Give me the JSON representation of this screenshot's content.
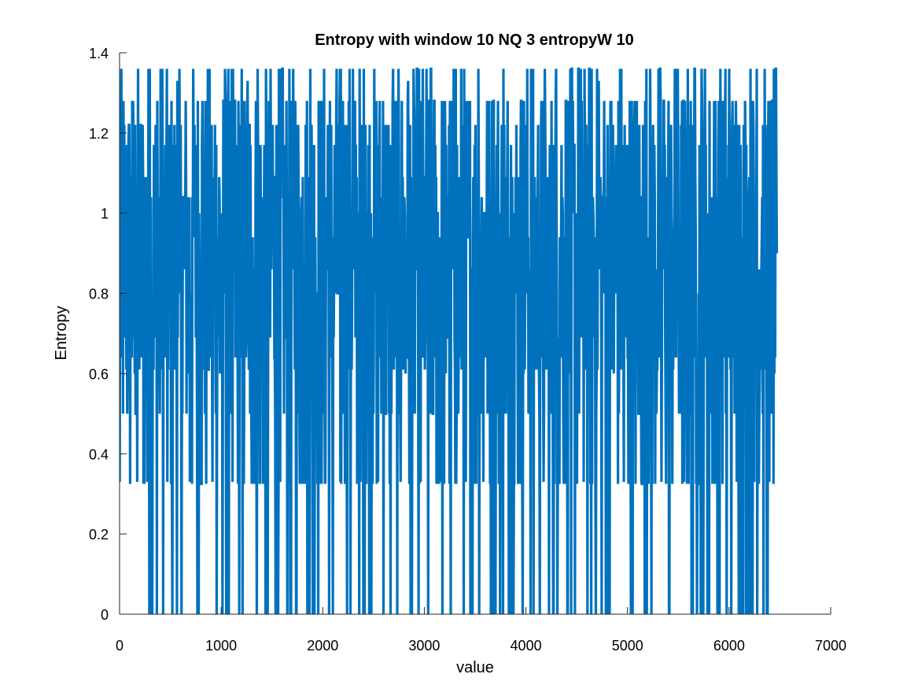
{
  "chart_data": {
    "type": "line",
    "title": "Entropy with window 10  NQ 3  entropyW 10",
    "xlabel": "value",
    "ylabel": "Entropy",
    "xlim": [
      0,
      7000
    ],
    "ylim": [
      0,
      1.4
    ],
    "x_ticks": [
      "0",
      "1000",
      "2000",
      "3000",
      "4000",
      "5000",
      "6000",
      "7000"
    ],
    "y_ticks": [
      "0",
      "0.2",
      "0.4",
      "0.6",
      "0.8",
      "1",
      "1.2",
      "1.4"
    ],
    "grid": false,
    "legend": "none",
    "series": [
      {
        "color": "#0072BD",
        "x_range": [
          1,
          6470
        ],
        "levels": [
          0,
          0.325,
          0.5,
          0.61,
          0.64,
          0.69,
          0.8,
          0.86,
          0.94,
          1.0,
          1.04,
          1.09,
          1.17,
          1.22,
          1.28,
          1.36
        ],
        "values": [
          0.33,
          1.06,
          0.69,
          0.5,
          0.94,
          1.28,
          0.6,
          0.33,
          1.09,
          0.69,
          0.86,
          0.33,
          1.36,
          0.0,
          0.69,
          1.28,
          0.5,
          1.36,
          0.64,
          0.33,
          1.09,
          0.0,
          0.69,
          1.33,
          0.8,
          0.5,
          1.0,
          0.6,
          0.33,
          1.04,
          0.94,
          0.0,
          0.69,
          1.28,
          0.5,
          1.09,
          0.69,
          0.33,
          1.22,
          0.94,
          0.6,
          0.0,
          1.36,
          0.5,
          0.86,
          0.33,
          1.28,
          0.69,
          1.06,
          0.0,
          0.64,
          1.33,
          0.5,
          0.94,
          0.6,
          1.36,
          0.33,
          0.8,
          1.09,
          0.0,
          0.69,
          1.22,
          0.5,
          1.0,
          0.33,
          1.36,
          0.69,
          0.94,
          0.0,
          0.86,
          1.28,
          0.5,
          0.69,
          1.09,
          0.33,
          0.6,
          1.36,
          0.0,
          0.94,
          0.69,
          1.06,
          0.5,
          0.33,
          1.22,
          0.64,
          0.0,
          1.04,
          0.8,
          0.33,
          1.28,
          0.5,
          0.94,
          0.0,
          1.36,
          0.69,
          1.0,
          0.33,
          0.6,
          1.22,
          0.5,
          0.0,
          0.94,
          1.09,
          0.33,
          0.69,
          1.28,
          0.5,
          0.86,
          0.0,
          1.36,
          0.69,
          1.06,
          0.33,
          0.94,
          0.6,
          1.33,
          0.0,
          0.5,
          1.22,
          0.69,
          0.33,
          1.09,
          0.8,
          0.0,
          1.36,
          0.5,
          0.94,
          0.69,
          0.33,
          1.28,
          0.6,
          1.04,
          0.0,
          0.86,
          1.36,
          0.5,
          0.69,
          1.22,
          0.33,
          0.94,
          0.0,
          1.09,
          0.69,
          1.36,
          0.5,
          0.33,
          1.0,
          0.8,
          0.0,
          1.28,
          0.64,
          0.94,
          0.33,
          1.36,
          0.5,
          0.69,
          1.17,
          0.0,
          0.86,
          0.33,
          1.28,
          0.6,
          1.04,
          0.5,
          1.36,
          0.0,
          0.94,
          0.69,
          1.22,
          0.33,
          0.8,
          1.09,
          0.5,
          0.0,
          1.36,
          0.69,
          0.94,
          0.33,
          1.28,
          0.6,
          0.0,
          1.06,
          0.5,
          1.36,
          0.69,
          0.33,
          1.22,
          0.86,
          0.0,
          0.94,
          0.5,
          1.33,
          0.69,
          1.04,
          0.33,
          0.0,
          1.28,
          0.6,
          0.94,
          0.5,
          1.36,
          0.33,
          0.69,
          1.09,
          0.0,
          0.8,
          1.22,
          0.5,
          0.33,
          0.94,
          1.36,
          0.69,
          0.0,
          1.06,
          0.5,
          0.86,
          0.33,
          1.28,
          0.69,
          0.0,
          1.0,
          0.64,
          1.36,
          0.5,
          0.94,
          0.33,
          0.69,
          1.22,
          0.0,
          1.09,
          0.5,
          0.33,
          1.36,
          0.8,
          0.69,
          0.0,
          0.94,
          1.28,
          0.5,
          0.33,
          1.04,
          0.69,
          0.0,
          1.36,
          0.6,
          0.94,
          0.33,
          1.22,
          0.5,
          0.69,
          0.0,
          1.09,
          0.86,
          0.33,
          1.36,
          0.5,
          0.94,
          0.69,
          0.0,
          0.33,
          1.28,
          0.6,
          0.9
        ]
      }
    ]
  }
}
